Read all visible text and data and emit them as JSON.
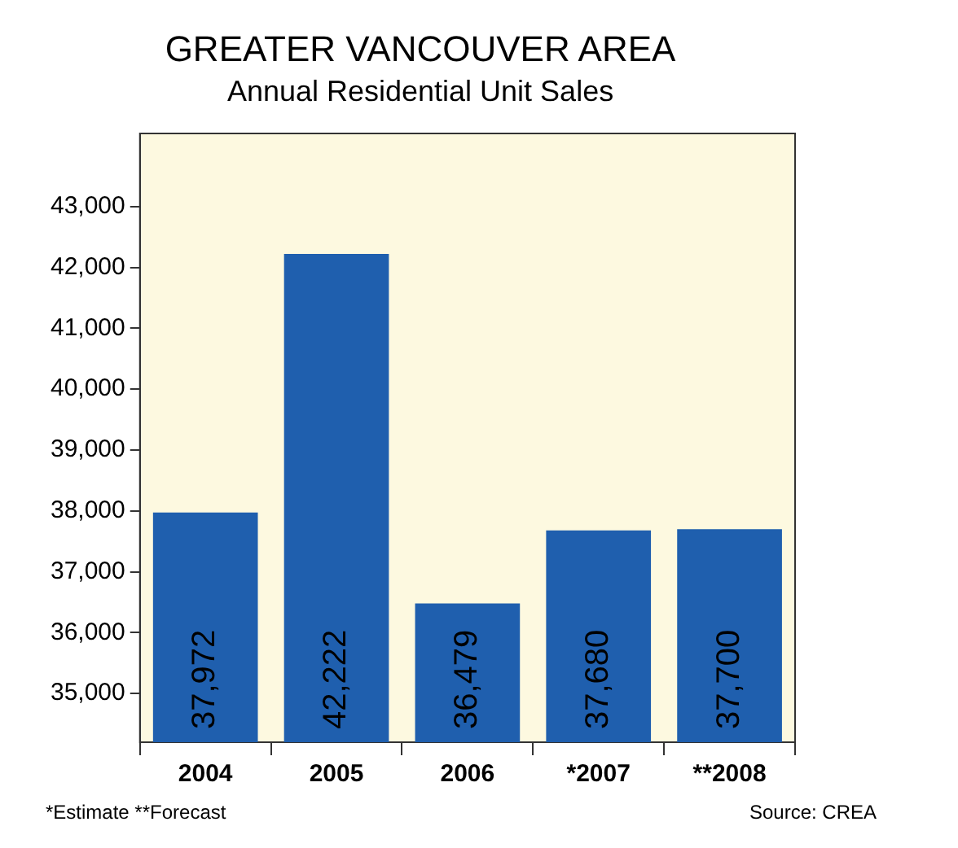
{
  "chart_data": {
    "type": "bar",
    "title": "GREATER VANCOUVER AREA",
    "subtitle": "Annual Residential Unit Sales",
    "categories": [
      "2004",
      "2005",
      "2006",
      "*2007",
      "**2008"
    ],
    "values": [
      37972,
      42222,
      36479,
      37680,
      37700
    ],
    "color": "#1f5fae",
    "ylim": [
      34200,
      44200
    ],
    "yticks": [
      {
        "value": 35000,
        "label": "35,000"
      },
      {
        "value": 36000,
        "label": "36,000"
      },
      {
        "value": 37000,
        "label": "37,000"
      },
      {
        "value": 38000,
        "label": "38,000"
      },
      {
        "value": 39000,
        "label": "39,000"
      },
      {
        "value": 40000,
        "label": "40,000"
      },
      {
        "value": 41000,
        "label": "41,000"
      },
      {
        "value": 42000,
        "label": "42,000"
      },
      {
        "value": 43000,
        "label": "43,000"
      }
    ],
    "value_labels": [
      "37,972",
      "42,222",
      "36,479",
      "37,680",
      "37,700"
    ],
    "grid": false,
    "legend": false,
    "annotations": [
      "*Estimate  **Forecast",
      "Source: CREA"
    ]
  }
}
